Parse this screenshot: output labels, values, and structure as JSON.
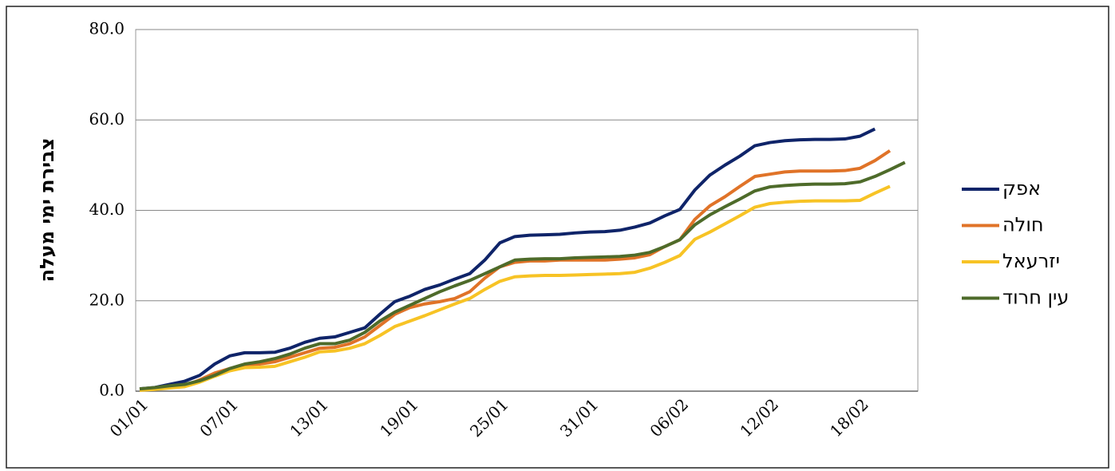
{
  "chart_data": {
    "type": "line",
    "ylabel": "צבירת ימי מעלה",
    "categories": [
      "01/01",
      null,
      null,
      null,
      null,
      null,
      "07/01",
      null,
      null,
      null,
      null,
      null,
      "13/01",
      null,
      null,
      null,
      null,
      null,
      "19/01",
      null,
      null,
      null,
      null,
      null,
      "25/01",
      null,
      null,
      null,
      null,
      null,
      "31/01",
      null,
      null,
      null,
      null,
      null,
      "06/02",
      null,
      null,
      null,
      null,
      null,
      "12/02",
      null,
      null,
      null,
      null,
      null,
      "18/02",
      null,
      null,
      null
    ],
    "series": [
      {
        "name": "אפק",
        "color": "#0f2469",
        "values": [
          0.5,
          0.8,
          1.5,
          2.2,
          3.5,
          6,
          7.8,
          8.5,
          8.5,
          8.6,
          9.5,
          10.8,
          11.7,
          12,
          13,
          14,
          17,
          19.8,
          21,
          22.5,
          23.5,
          24.8,
          26,
          29,
          32.8,
          34.2,
          34.5,
          34.6,
          34.7,
          35,
          35.2,
          35.3,
          35.6,
          36.3,
          37.2,
          38.8,
          40.2,
          44.5,
          47.8,
          50,
          52,
          54.3,
          55,
          55.4,
          55.6,
          55.7,
          55.7,
          55.8,
          56.4,
          58,
          null,
          null
        ]
      },
      {
        "name": "חולה",
        "color": "#e07328",
        "values": [
          0.3,
          0.5,
          0.8,
          1.2,
          2.5,
          4,
          5,
          5.8,
          6,
          6.5,
          7.5,
          8.5,
          9.5,
          9.7,
          10.5,
          12,
          14.5,
          17,
          18.5,
          19.3,
          19.8,
          20.5,
          22,
          25,
          27.5,
          28.5,
          28.8,
          28.8,
          29,
          29,
          29,
          29,
          29.2,
          29.5,
          30.2,
          32,
          33.5,
          38,
          41,
          43,
          45.3,
          47.5,
          48,
          48.5,
          48.7,
          48.7,
          48.7,
          48.8,
          49.3,
          51,
          53.2,
          null
        ]
      },
      {
        "name": "יזרעאל",
        "color": "#f7c325",
        "values": [
          0.2,
          0.4,
          0.7,
          1,
          2,
          3.3,
          4.5,
          5.2,
          5.3,
          5.5,
          6.5,
          7.5,
          8.7,
          8.9,
          9.5,
          10.5,
          12.3,
          14.3,
          15.5,
          16.7,
          18,
          19.3,
          20.5,
          22.5,
          24.3,
          25.3,
          25.5,
          25.6,
          25.6,
          25.7,
          25.8,
          25.9,
          26,
          26.3,
          27.2,
          28.5,
          30,
          33.6,
          35.2,
          37,
          38.8,
          40.7,
          41.5,
          41.8,
          42,
          42.1,
          42.1,
          42.1,
          42.2,
          43.8,
          45.3,
          null
        ]
      },
      {
        "name": "עין חרוד",
        "color": "#4e6b2a",
        "values": [
          0.5,
          0.8,
          1.2,
          1.5,
          2.3,
          3.5,
          5,
          6,
          6.5,
          7.2,
          8.2,
          9.5,
          10.5,
          10.5,
          11.3,
          13,
          15.5,
          17.5,
          19,
          20.5,
          22,
          23.3,
          24.5,
          26,
          27.5,
          29,
          29.2,
          29.3,
          29.3,
          29.5,
          29.6,
          29.7,
          29.8,
          30.1,
          30.7,
          32,
          33.5,
          36.8,
          39,
          40.8,
          42.5,
          44.3,
          45.2,
          45.5,
          45.7,
          45.8,
          45.8,
          45.9,
          46.3,
          47.5,
          49,
          50.6
        ]
      }
    ],
    "ylim": [
      0,
      80
    ],
    "yticks": [
      {
        "value": 0,
        "label": "0.0"
      },
      {
        "value": 20,
        "label": "20.0"
      },
      {
        "value": 40,
        "label": "40.0"
      },
      {
        "value": 60,
        "label": "60.0"
      },
      {
        "value": 80,
        "label": "80.0"
      }
    ],
    "grid": true,
    "legend": "right"
  }
}
